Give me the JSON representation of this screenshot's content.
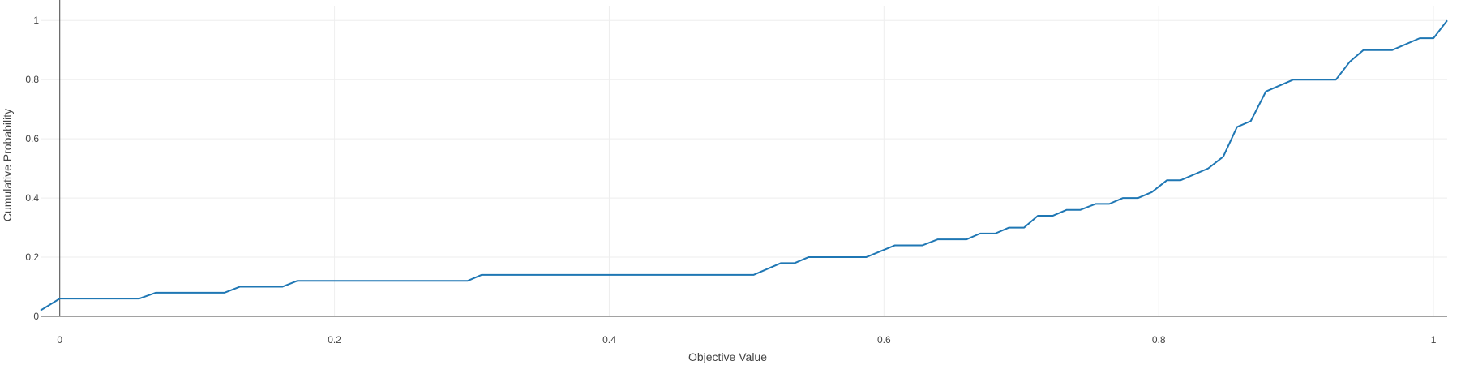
{
  "chart_data": {
    "type": "line",
    "title": "",
    "xlabel": "Objective Value",
    "ylabel": "Cumulative Probability",
    "xlim": [
      -0.014,
      1.01
    ],
    "ylim": [
      0,
      1.05
    ],
    "grid": true,
    "legend": "none",
    "x_ticks": [
      "0",
      "0.2",
      "0.4",
      "0.6",
      "0.8",
      "1"
    ],
    "x_tick_values": [
      0,
      0.2,
      0.4,
      0.6,
      0.8,
      1
    ],
    "y_ticks": [
      "0",
      "0.2",
      "0.4",
      "0.6",
      "0.8",
      "1"
    ],
    "y_tick_values": [
      0,
      0.2,
      0.4,
      0.6,
      0.8,
      1
    ],
    "colors": {
      "line": "#1f77b4",
      "grid": "#eeeeee",
      "axis": "#444444"
    },
    "series": [
      {
        "x": [
          -0.014,
          0.0,
          0.058,
          0.07,
          0.12,
          0.131,
          0.162,
          0.173,
          0.297,
          0.307,
          0.505,
          0.525,
          0.535,
          0.545,
          0.587,
          0.608,
          0.628,
          0.639,
          0.66,
          0.67,
          0.681,
          0.691,
          0.702,
          0.712,
          0.723,
          0.733,
          0.743,
          0.754,
          0.764,
          0.774,
          0.785,
          0.795,
          0.806,
          0.816,
          0.836,
          0.847,
          0.857,
          0.867,
          0.878,
          0.898,
          0.929,
          0.939,
          0.949,
          0.97,
          0.99,
          1.0,
          1.01
        ],
        "values": [
          0.02,
          0.06,
          0.06,
          0.08,
          0.08,
          0.1,
          0.1,
          0.12,
          0.12,
          0.14,
          0.14,
          0.18,
          0.18,
          0.2,
          0.2,
          0.24,
          0.24,
          0.26,
          0.26,
          0.28,
          0.28,
          0.3,
          0.3,
          0.34,
          0.34,
          0.36,
          0.36,
          0.38,
          0.38,
          0.4,
          0.4,
          0.42,
          0.46,
          0.46,
          0.5,
          0.54,
          0.64,
          0.66,
          0.76,
          0.8,
          0.8,
          0.86,
          0.9,
          0.9,
          0.94,
          0.94,
          1.0
        ]
      }
    ]
  }
}
